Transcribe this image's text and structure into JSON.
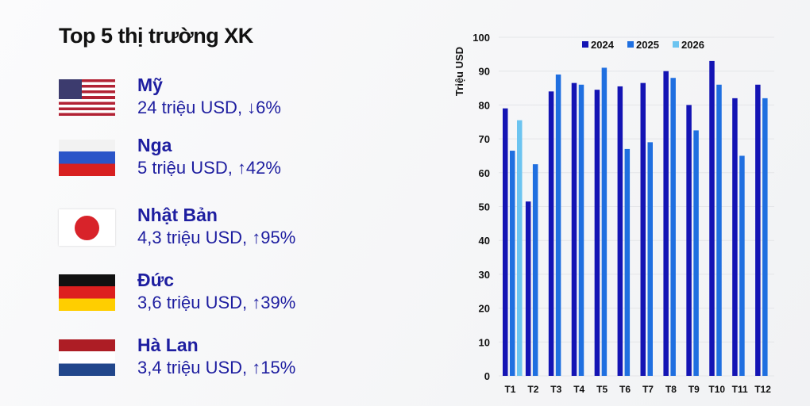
{
  "title": "Top 5 thị trường XK",
  "markets": [
    {
      "name": "Mỹ",
      "value": "24 triệu USD, ↓6%",
      "flag": "us-flag"
    },
    {
      "name": "Nga",
      "value": "5 triệu USD, ↑42%",
      "flag": "russia-flag"
    },
    {
      "name": "Nhật Bản",
      "value": "4,3 triệu USD, ↑95%",
      "flag": "japan-flag"
    },
    {
      "name": "Đức",
      "value": "3,6 triệu USD, ↑39%",
      "flag": "germany-flag"
    },
    {
      "name": "Hà Lan",
      "value": "3,4 triệu USD, ↑15%",
      "flag": "netherlands-flag"
    }
  ],
  "chart_data": {
    "type": "bar",
    "title": "",
    "xlabel": "",
    "ylabel": "Triệu USD",
    "ylim": [
      0,
      100
    ],
    "yticks": [
      0,
      10,
      20,
      30,
      40,
      50,
      60,
      70,
      80,
      90,
      100
    ],
    "categories": [
      "T1",
      "T2",
      "T3",
      "T4",
      "T5",
      "T6",
      "T7",
      "T8",
      "T9",
      "T10",
      "T11",
      "T12"
    ],
    "legend_position": "top",
    "series": [
      {
        "name": "2024",
        "color": "#1414b4",
        "values": [
          79,
          51.5,
          84,
          86.5,
          84.5,
          85.5,
          86.5,
          90,
          80,
          93,
          82,
          86
        ]
      },
      {
        "name": "2025",
        "color": "#1f6fe0",
        "values": [
          66.5,
          62.5,
          89,
          86,
          91,
          67,
          69,
          88,
          72.5,
          86,
          65,
          82
        ]
      },
      {
        "name": "2026",
        "color": "#6cc4f0",
        "values": [
          75.5,
          null,
          null,
          null,
          null,
          null,
          null,
          null,
          null,
          null,
          null,
          null
        ]
      }
    ]
  }
}
